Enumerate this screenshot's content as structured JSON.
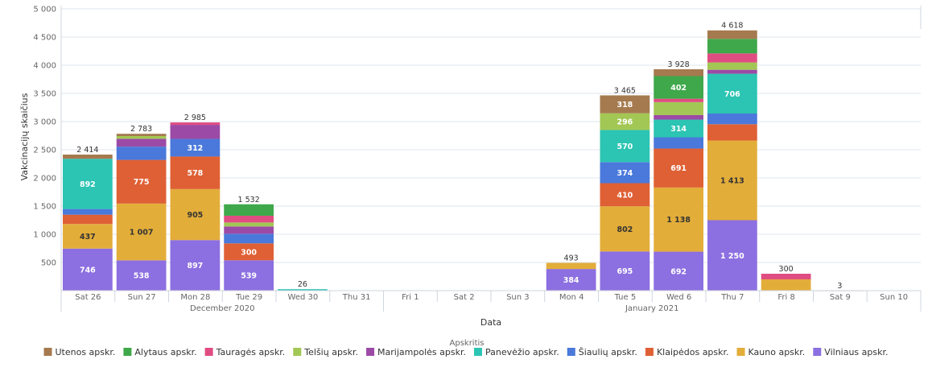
{
  "chart_data": {
    "type": "bar",
    "stacked": true,
    "title": "",
    "xlabel": "Data",
    "ylabel": "Vakcinacijų skaičius",
    "ylim": [
      0,
      5000
    ],
    "yticks": [
      500,
      1000,
      1500,
      2000,
      2500,
      3000,
      3500,
      4000,
      4500,
      5000
    ],
    "ytick_labels": [
      "500",
      "1 000",
      "1 500",
      "2 000",
      "2 500",
      "3 000",
      "3 500",
      "4 000",
      "4 500",
      "5 000"
    ],
    "grid": true,
    "legend_title": "Apskritis",
    "legend_position": "bottom",
    "categories": [
      "Sat 26",
      "Sun 27",
      "Mon 28",
      "Tue 29",
      "Wed 30",
      "Thu 31",
      "Fri 1",
      "Sat 2",
      "Sun 3",
      "Mon 4",
      "Tue 5",
      "Wed 6",
      "Thu 7",
      "Fri 8",
      "Sat 9",
      "Sun 10"
    ],
    "month_groups": [
      {
        "label": "December 2020",
        "from": 0,
        "to": 5
      },
      {
        "label": "January 2021",
        "from": 6,
        "to": 15
      }
    ],
    "totals": [
      2414,
      2783,
      2985,
      1532,
      26,
      0,
      0,
      0,
      0,
      493,
      3465,
      3928,
      4618,
      300,
      3,
      0
    ],
    "total_labels": [
      "2 414",
      "2 783",
      "2 985",
      "1 532",
      "26",
      "",
      "",
      "",
      "",
      "493",
      "3 465",
      "3 928",
      "4 618",
      "300",
      "3",
      ""
    ],
    "series": [
      {
        "name": "Vilniaus apskr.",
        "color": "#8c6fe0",
        "values": [
          746,
          538,
          897,
          539,
          0,
          0,
          0,
          0,
          0,
          384,
          695,
          692,
          1250,
          0,
          0,
          0
        ],
        "labels": [
          "746",
          "538",
          "897",
          "539",
          "",
          "",
          "",
          "",
          "",
          "384",
          "695",
          "692",
          "1 250",
          "",
          "",
          ""
        ]
      },
      {
        "name": "Kauno apskr.",
        "color": "#e3ad3a",
        "values": [
          437,
          1007,
          905,
          0,
          0,
          0,
          0,
          0,
          0,
          109,
          802,
          1138,
          1413,
          200,
          0,
          0
        ],
        "labels": [
          "437",
          "1 007",
          "905",
          "",
          "",
          "",
          "",
          "",
          "",
          "",
          "802",
          "1 138",
          "1 413",
          "",
          "",
          ""
        ]
      },
      {
        "name": "Klaipėdos apskr.",
        "color": "#df6035",
        "values": [
          165,
          775,
          578,
          300,
          0,
          0,
          0,
          0,
          0,
          0,
          410,
          691,
          290,
          0,
          0,
          0
        ],
        "labels": [
          "",
          "775",
          "578",
          "300",
          "",
          "",
          "",
          "",
          "",
          "",
          "410",
          "691",
          "",
          "",
          "",
          ""
        ]
      },
      {
        "name": "Šiaulių apskr.",
        "color": "#4a79db",
        "values": [
          100,
          235,
          312,
          170,
          0,
          0,
          0,
          0,
          0,
          0,
          374,
          200,
          190,
          0,
          0,
          0
        ],
        "labels": [
          "",
          "",
          "312",
          "",
          "",
          "",
          "",
          "",
          "",
          "",
          "374",
          "",
          "",
          "",
          "",
          ""
        ]
      },
      {
        "name": "Panevėžio apskr.",
        "color": "#2cc4b2",
        "values": [
          892,
          0,
          0,
          0,
          26,
          0,
          0,
          0,
          0,
          0,
          570,
          314,
          706,
          0,
          0,
          0
        ],
        "labels": [
          "892",
          "",
          "",
          "",
          "",
          "",
          "",
          "",
          "",
          "",
          "570",
          "314",
          "706",
          "",
          "",
          ""
        ]
      },
      {
        "name": "Marijampolės apskr.",
        "color": "#9b4aa6",
        "values": [
          0,
          140,
          250,
          130,
          0,
          0,
          0,
          0,
          0,
          0,
          0,
          80,
          70,
          0,
          0,
          0
        ],
        "labels": [
          "",
          "",
          "",
          "",
          "",
          "",
          "",
          "",
          "",
          "",
          "",
          "",
          "",
          "",
          "",
          ""
        ]
      },
      {
        "name": "Telšių apskr.",
        "color": "#a3c754",
        "values": [
          0,
          48,
          0,
          70,
          0,
          0,
          0,
          0,
          0,
          0,
          296,
          230,
          130,
          0,
          0,
          0
        ],
        "labels": [
          "",
          "",
          "",
          "",
          "",
          "",
          "",
          "",
          "",
          "",
          "296",
          "",
          "",
          "",
          "",
          ""
        ]
      },
      {
        "name": "Tauragės apskr.",
        "color": "#e04d82",
        "values": [
          0,
          0,
          43,
          120,
          0,
          0,
          0,
          0,
          0,
          0,
          0,
          60,
          160,
          100,
          3,
          0
        ],
        "labels": [
          "",
          "",
          "",
          "",
          "",
          "",
          "",
          "",
          "",
          "",
          "",
          "",
          "",
          "",
          "",
          ""
        ]
      },
      {
        "name": "Alytaus apskr.",
        "color": "#3fa84a",
        "values": [
          0,
          0,
          0,
          203,
          0,
          0,
          0,
          0,
          0,
          0,
          0,
          402,
          259,
          0,
          0,
          0
        ],
        "labels": [
          "",
          "",
          "",
          "",
          "",
          "",
          "",
          "",
          "",
          "",
          "",
          "402",
          "",
          "",
          "",
          ""
        ]
      },
      {
        "name": "Utenos apskr.",
        "color": "#a57a4f",
        "values": [
          74,
          40,
          0,
          0,
          0,
          0,
          0,
          0,
          0,
          0,
          318,
          121,
          150,
          0,
          0,
          0
        ],
        "labels": [
          "",
          "",
          "",
          "",
          "",
          "",
          "",
          "",
          "",
          "",
          "318",
          "",
          "",
          "",
          "",
          ""
        ]
      }
    ],
    "legend_order": [
      "Utenos apskr.",
      "Alytaus apskr.",
      "Tauragės apskr.",
      "Telšių apskr.",
      "Marijampolės apskr.",
      "Panevėžio apskr.",
      "Šiaulių apskr.",
      "Klaipėdos apskr.",
      "Kauno apskr.",
      "Vilniaus apskr."
    ]
  }
}
